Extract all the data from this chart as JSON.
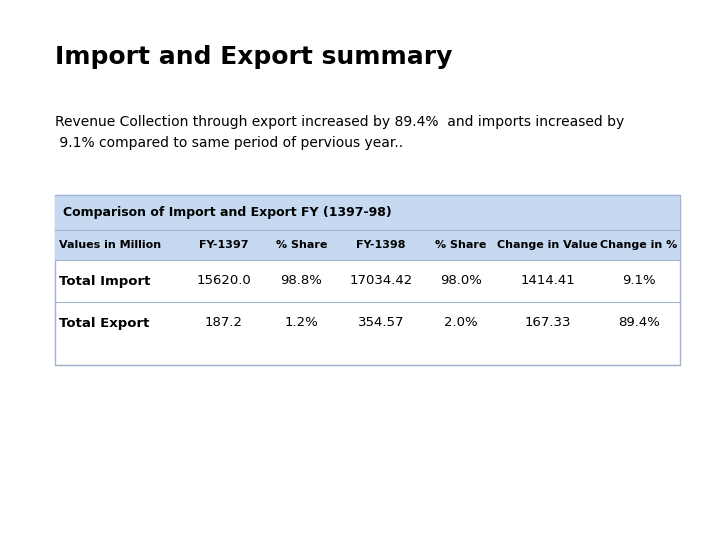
{
  "title": "Import and Export summary",
  "subtitle_line1": "Revenue Collection through export increased by 89.4%  and imports increased by",
  "subtitle_line2": " 9.1% compared to same period of pervious year..",
  "table_title": "Comparison of Import and Export FY (1397-98)",
  "col_headers": [
    "Values in Million",
    "FY-1397",
    "% Share",
    "FY-1398",
    "% Share",
    "Change in Value",
    "Change in %"
  ],
  "rows": [
    [
      "Total Import",
      "15620.0",
      "98.8%",
      "17034.42",
      "98.0%",
      "1414.41",
      "9.1%"
    ],
    [
      "Total Export",
      "187.2",
      "1.2%",
      "354.57",
      "2.0%",
      "167.33",
      "89.4%"
    ]
  ],
  "table_header_bg": "#c5d9f1",
  "table_border_color": "#a0b4d0",
  "background_color": "#ffffff",
  "title_fontsize": 18,
  "subtitle_fontsize": 10,
  "table_title_fontsize": 9,
  "col_header_fontsize": 8,
  "row_fontsize": 9.5
}
